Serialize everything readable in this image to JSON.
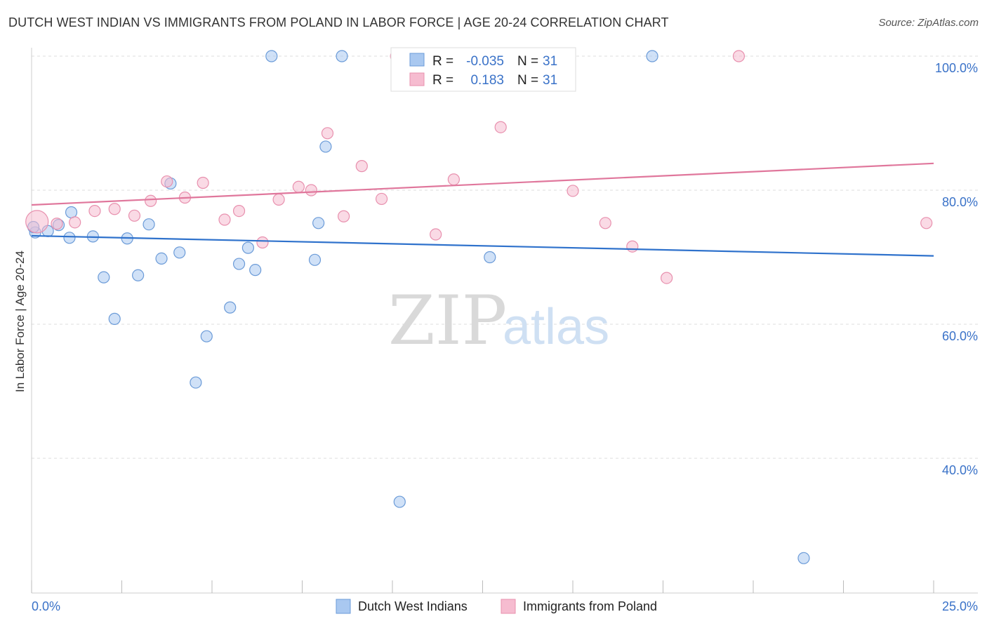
{
  "title": "DUTCH WEST INDIAN VS IMMIGRANTS FROM POLAND IN LABOR FORCE | AGE 20-24 CORRELATION CHART",
  "source": "Source: ZipAtlas.com",
  "watermark": {
    "zip": "ZIP",
    "atlas": "atlas"
  },
  "legend_box": {
    "r_label": "R =",
    "n_label": "N =",
    "rows": [
      {
        "r": "-0.035",
        "n": "31",
        "color": "#a9c8f0"
      },
      {
        "r": "0.183",
        "n": "31",
        "color": "#f6bcd0"
      }
    ]
  },
  "chart_data": {
    "type": "scatter",
    "title": "DUTCH WEST INDIAN VS IMMIGRANTS FROM POLAND IN LABOR FORCE | AGE 20-24 CORRELATION CHART",
    "xlabel": "",
    "ylabel": "In Labor Force | Age 20-24",
    "xlim": [
      0,
      25
    ],
    "ylim": [
      22,
      102
    ],
    "x_tick_labels": [
      "0.0%",
      "25.0%"
    ],
    "y_ticks": [
      40,
      60,
      80,
      100
    ],
    "y_tick_labels": [
      "40.0%",
      "60.0%",
      "80.0%",
      "100.0%"
    ],
    "grid": true,
    "legend_position": "bottom",
    "series": [
      {
        "name": "Dutch West Indians",
        "color": "#a9c8f0",
        "stroke": "#6b9bd8",
        "line_color": "#2f72cc",
        "trend": [
          [
            0,
            73.2
          ],
          [
            25,
            70.2
          ]
        ],
        "points": [
          [
            0.1,
            73.7
          ],
          [
            0.45,
            73.9
          ],
          [
            0.75,
            74.8
          ],
          [
            1.1,
            76.7
          ],
          [
            1.05,
            72.9
          ],
          [
            1.7,
            73.1
          ],
          [
            2.0,
            67.0
          ],
          [
            2.3,
            60.8
          ],
          [
            2.65,
            72.8
          ],
          [
            2.95,
            67.3
          ],
          [
            3.25,
            74.9
          ],
          [
            3.6,
            69.8
          ],
          [
            3.85,
            81.0
          ],
          [
            4.1,
            70.7
          ],
          [
            4.55,
            51.3
          ],
          [
            4.85,
            58.2
          ],
          [
            5.5,
            62.5
          ],
          [
            5.75,
            69.0
          ],
          [
            6.0,
            71.4
          ],
          [
            6.2,
            68.1
          ],
          [
            6.65,
            100.0
          ],
          [
            7.85,
            69.6
          ],
          [
            7.95,
            75.1
          ],
          [
            8.15,
            86.5
          ],
          [
            8.6,
            100.0
          ],
          [
            10.2,
            33.5
          ],
          [
            12.7,
            70.0
          ],
          [
            13.5,
            100.0
          ],
          [
            17.2,
            100.0
          ],
          [
            21.4,
            25.1
          ],
          [
            0.05,
            74.5
          ]
        ]
      },
      {
        "name": "Immigrants from Poland",
        "color": "#f6bcd0",
        "stroke": "#e890ae",
        "line_color": "#e0779c",
        "trend": [
          [
            0,
            77.8
          ],
          [
            25,
            84.0
          ]
        ],
        "points": [
          [
            0.15,
            75.3
          ],
          [
            0.7,
            75.0
          ],
          [
            1.2,
            75.2
          ],
          [
            1.75,
            76.9
          ],
          [
            2.3,
            77.2
          ],
          [
            2.85,
            76.2
          ],
          [
            3.3,
            78.4
          ],
          [
            3.75,
            81.3
          ],
          [
            4.25,
            78.9
          ],
          [
            4.75,
            81.1
          ],
          [
            5.35,
            75.6
          ],
          [
            5.75,
            76.9
          ],
          [
            6.4,
            72.2
          ],
          [
            6.85,
            78.6
          ],
          [
            7.4,
            80.5
          ],
          [
            7.75,
            80.0
          ],
          [
            8.2,
            88.5
          ],
          [
            8.65,
            76.1
          ],
          [
            9.15,
            83.6
          ],
          [
            9.7,
            78.7
          ],
          [
            10.1,
            100.0
          ],
          [
            11.2,
            73.4
          ],
          [
            11.7,
            81.6
          ],
          [
            13.0,
            89.4
          ],
          [
            14.25,
            100.0
          ],
          [
            15.0,
            79.9
          ],
          [
            15.9,
            75.1
          ],
          [
            16.65,
            71.6
          ],
          [
            17.6,
            66.9
          ],
          [
            19.6,
            100.0
          ],
          [
            24.8,
            75.1
          ]
        ]
      }
    ]
  }
}
